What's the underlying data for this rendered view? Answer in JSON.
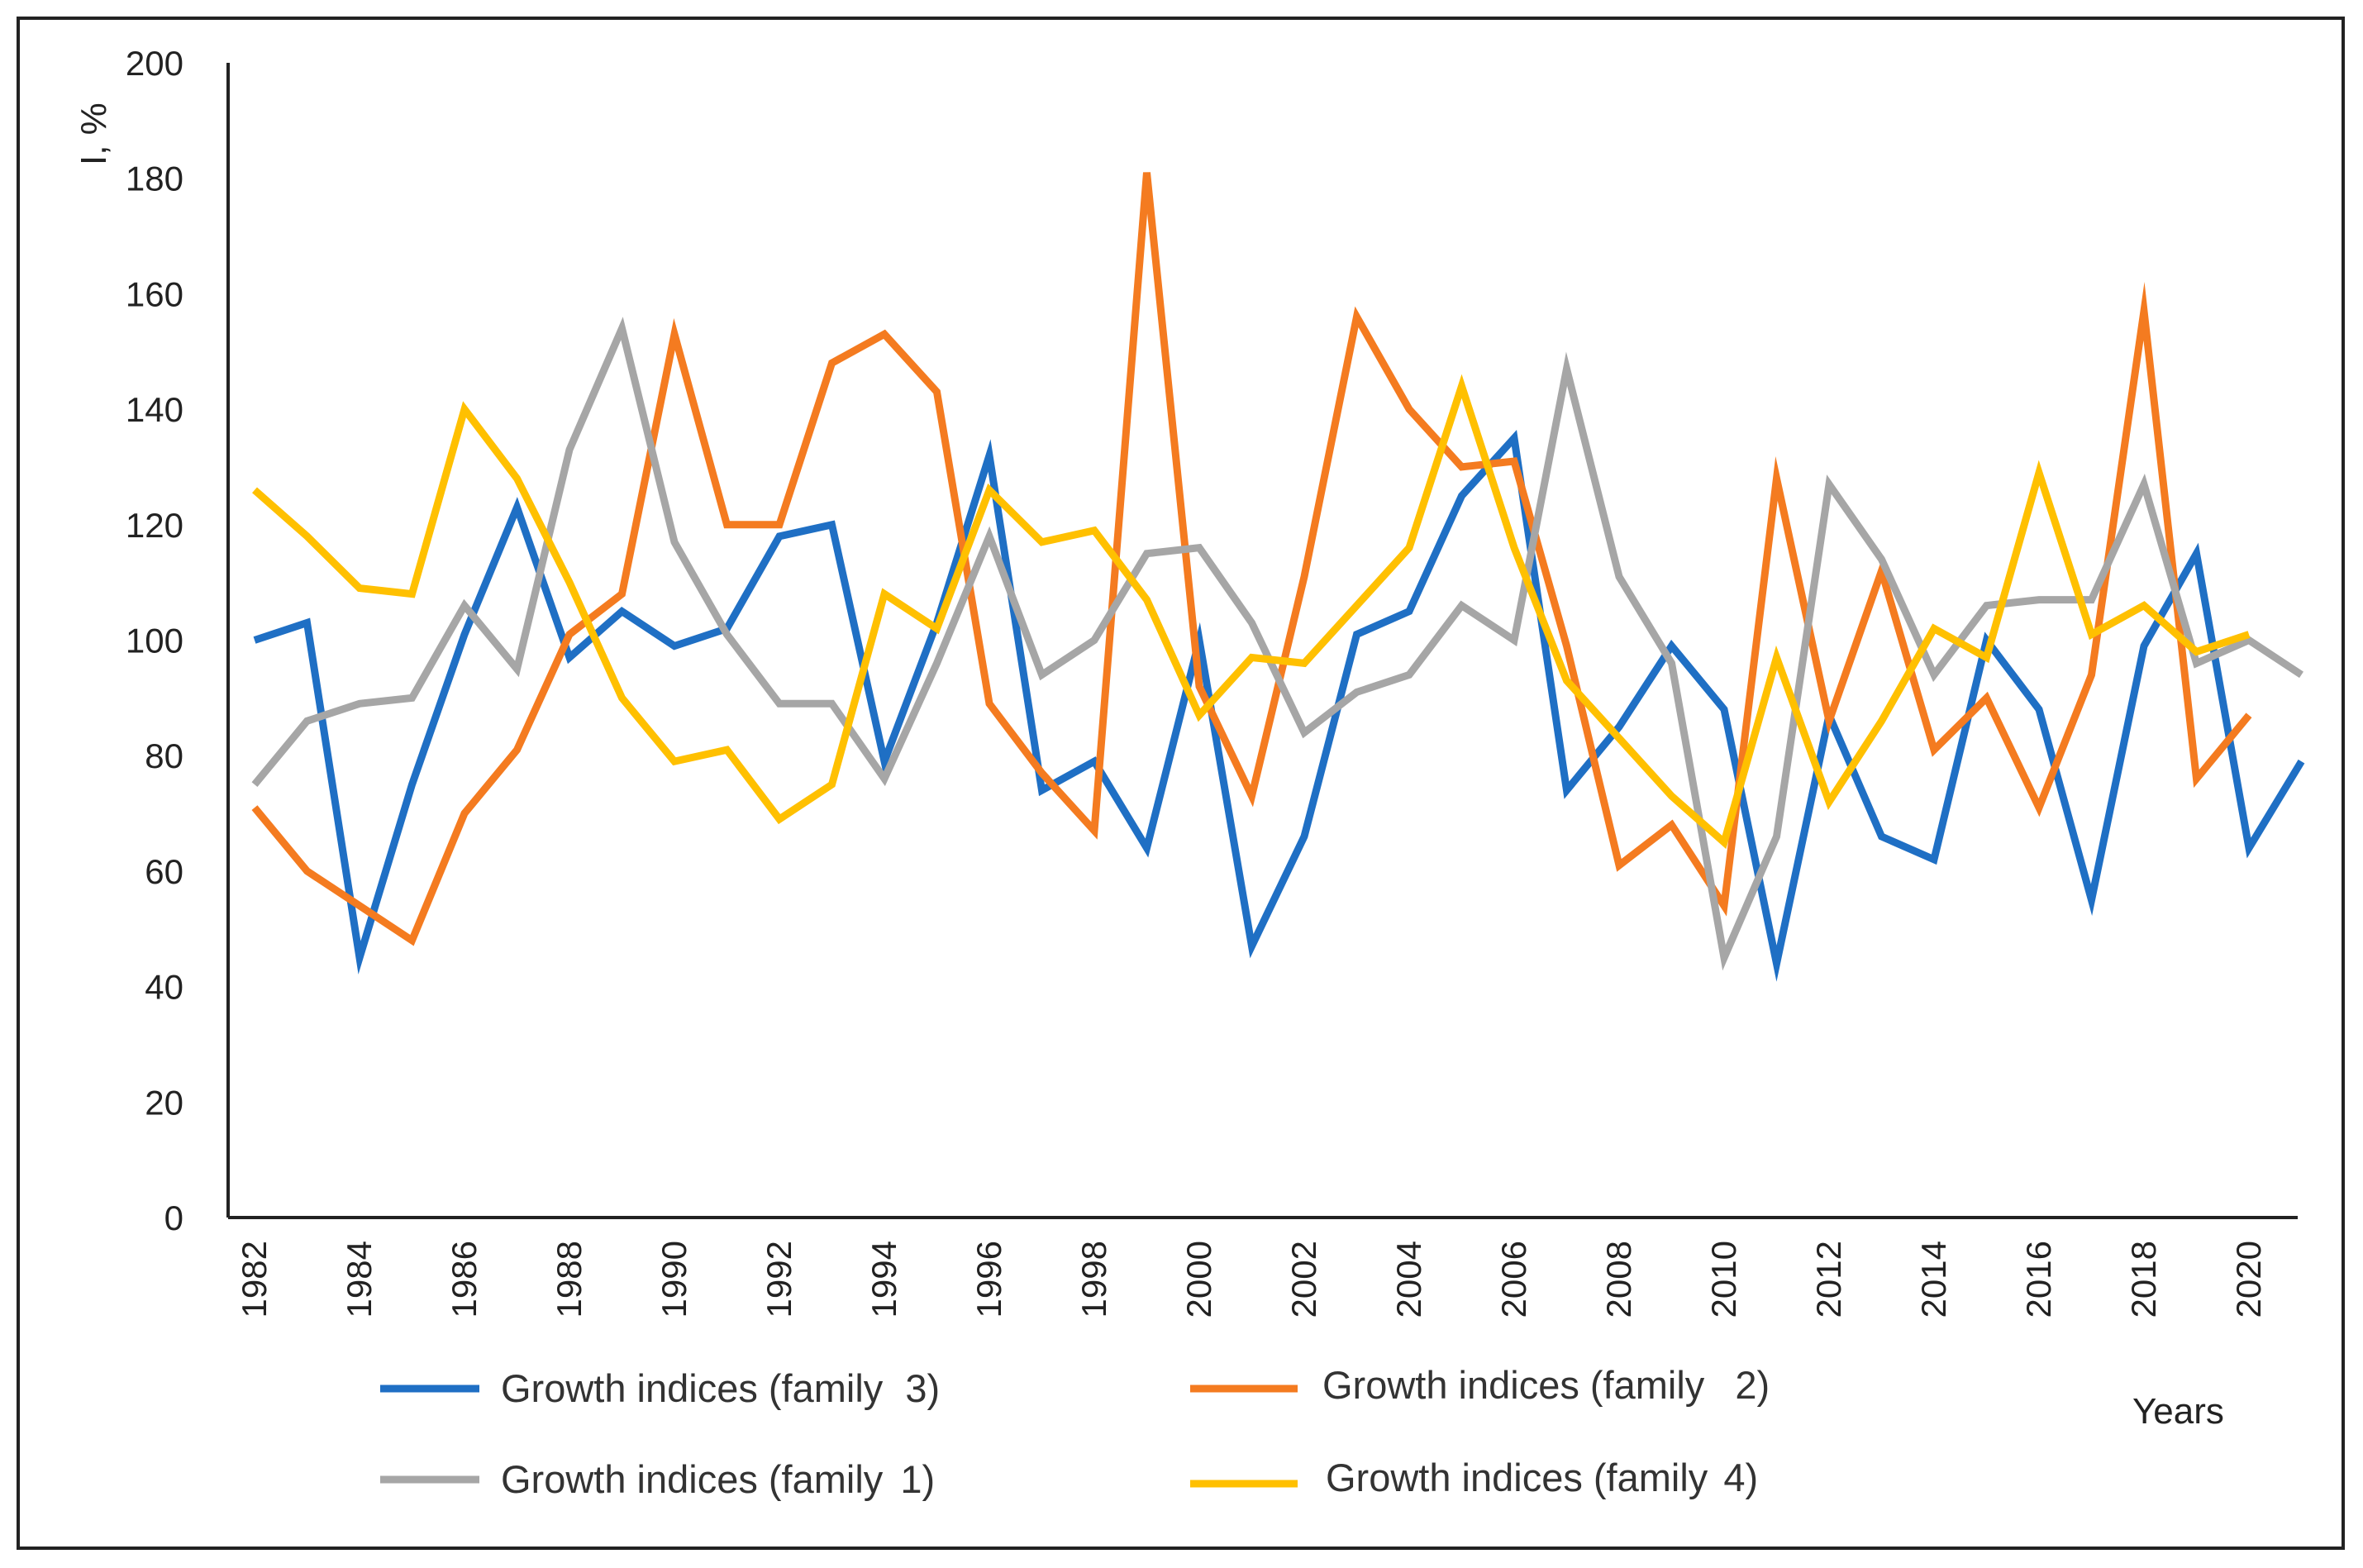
{
  "chart_data": {
    "type": "line",
    "title": "",
    "xlabel": "Years",
    "ylabel": "I, %",
    "ylim": [
      0,
      200
    ],
    "yticks": [
      0,
      20,
      40,
      60,
      80,
      100,
      120,
      140,
      160,
      180,
      200
    ],
    "x": [
      1982,
      1983,
      1984,
      1985,
      1986,
      1987,
      1988,
      1989,
      1990,
      1991,
      1992,
      1993,
      1994,
      1995,
      1996,
      1997,
      1998,
      1999,
      2000,
      2001,
      2002,
      2003,
      2004,
      2005,
      2006,
      2007,
      2008,
      2009,
      2010,
      2011,
      2012,
      2013,
      2014,
      2015,
      2016,
      2017,
      2018,
      2019,
      2020,
      2021
    ],
    "xtick_labels": [
      "1982",
      "1984",
      "1986",
      "1988",
      "1990",
      "1992",
      "1994",
      "1996",
      "1998",
      "2000",
      "2002",
      "2004",
      "2006",
      "2008",
      "2010",
      "2012",
      "2014",
      "2016",
      "2018",
      "2020"
    ],
    "series": [
      {
        "name": "Growth indices (family 3)",
        "color": "#1f6fc4",
        "values": [
          100,
          103,
          45,
          75,
          101,
          123,
          97,
          105,
          99,
          102,
          118,
          120,
          79,
          103,
          132,
          74,
          79,
          64,
          100,
          47,
          66,
          101,
          105,
          125,
          135,
          74,
          85,
          99,
          88,
          44,
          87,
          66,
          62,
          100,
          88,
          55,
          99,
          115,
          64,
          79
        ]
      },
      {
        "name": "Growth indices (family 2)",
        "color": "#f47b20",
        "values": [
          71,
          60,
          54,
          48,
          70,
          81,
          101,
          108,
          153,
          120,
          120,
          148,
          153,
          143,
          89,
          77,
          67,
          181,
          92,
          73,
          111,
          156,
          140,
          130,
          131,
          99,
          61,
          68,
          54,
          128,
          86,
          112,
          81,
          90,
          71,
          94,
          157,
          76,
          87,
          null
        ]
      },
      {
        "name": "Growth indices (family 1)",
        "color": "#a6a6a6",
        "values": [
          75,
          86,
          89,
          90,
          106,
          95,
          133,
          154,
          117,
          101,
          89,
          89,
          76,
          96,
          118,
          94,
          100,
          115,
          116,
          103,
          84,
          91,
          94,
          106,
          100,
          147,
          111,
          96,
          45,
          66,
          127,
          114,
          94,
          106,
          107,
          107,
          127,
          96,
          100,
          94
        ]
      },
      {
        "name": "Growth indices (family 4)",
        "color": "#ffc000",
        "values": [
          126,
          118,
          109,
          108,
          140,
          128,
          110,
          90,
          79,
          81,
          69,
          75,
          108,
          102,
          126,
          117,
          119,
          107,
          87,
          97,
          96,
          106,
          116,
          144,
          116,
          93,
          83,
          73,
          65,
          97,
          72,
          86,
          102,
          97,
          129,
          101,
          106,
          98,
          101,
          null
        ]
      }
    ],
    "legend": {
      "placement": "bottom",
      "entries": [
        {
          "prefix": "Growth indices (family",
          "num": "3)"
        },
        {
          "prefix": "Growth indices (family",
          "num": "2)"
        },
        {
          "prefix": "Growth indices (family",
          "num": "1)"
        },
        {
          "prefix": "Growth indices (family",
          "num": "4)"
        }
      ]
    }
  }
}
